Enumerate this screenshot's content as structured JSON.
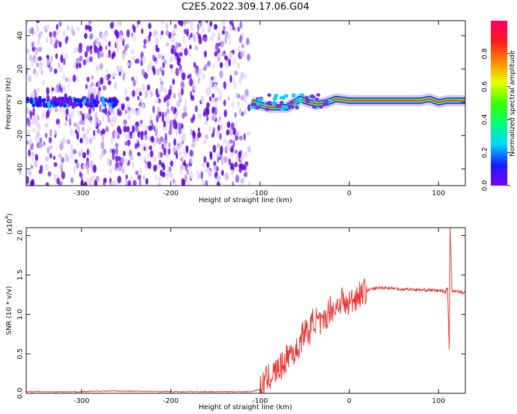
{
  "title": "C2E5.2022.309.17.06.G04",
  "colors": {
    "series": "#e8332f",
    "axis": "#000000",
    "spectrogram_purple": "#7a1fe6",
    "spectrogram_light": "#d9c4f5",
    "colorbar": [
      "#7d00ff",
      "#1a1aff",
      "#00d6ff",
      "#00ff7a",
      "#3cff00",
      "#e6ff00",
      "#ff8a00",
      "#ff1a1a",
      "#ff0066"
    ]
  },
  "chart_data": [
    {
      "type": "heatmap",
      "xlabel": "Height of straight line (km)",
      "ylabel": "Frequency (Hz)",
      "xlim": [
        -362,
        130
      ],
      "ylim": [
        -50,
        49
      ],
      "x_ticks": [
        -300,
        -200,
        -100,
        0,
        100
      ],
      "y_ticks": [
        -40,
        -20,
        0,
        20,
        40
      ],
      "x_tick_labels": [
        "-300",
        "-200",
        "-100",
        "0",
        "100"
      ],
      "y_tick_labels": [
        "-40",
        "-20",
        "0",
        "20",
        "40"
      ],
      "noise_region_x": [
        -362,
        -112
      ],
      "signal_line": {
        "x": [
          -110,
          -90,
          -70,
          -55,
          -45,
          -35,
          -25,
          -15,
          0,
          20,
          40,
          60,
          80,
          90,
          100,
          110,
          130
        ],
        "y": [
          0,
          -3,
          -3,
          2,
          0,
          -1,
          0,
          2,
          1,
          1,
          1,
          1,
          1,
          2,
          0,
          1,
          1
        ]
      },
      "colorbar": {
        "label": "Normalized spectral amplitude",
        "ticks": [
          0.0,
          0.2,
          0.4,
          0.6,
          0.8
        ],
        "tick_labels": [
          "0.0",
          "0.2",
          "0.4",
          "0.6",
          "0.8"
        ],
        "range": [
          0,
          1
        ]
      },
      "grid": false
    },
    {
      "type": "line",
      "xlabel": "Height of straight line (km)",
      "ylabel": "SNR (10 * v/v)",
      "y_multiplier_label": "(x10",
      "y_multiplier_exp": "4",
      "y_multiplier_close": ")",
      "xlim": [
        -362,
        130
      ],
      "ylim": [
        0,
        2.1
      ],
      "x_ticks": [
        -300,
        -200,
        -100,
        0,
        100
      ],
      "y_ticks": [
        0.0,
        0.5,
        1.0,
        1.5,
        2.0
      ],
      "x_tick_labels": [
        "-300",
        "-200",
        "-100",
        "0",
        "100"
      ],
      "y_tick_labels": [
        "0.0",
        "0.5",
        "1.0",
        "1.5",
        "2.0"
      ],
      "series": [
        {
          "x": [
            -362,
            -300,
            -270,
            -200,
            -150,
            -110,
            -100,
            -95,
            -90,
            -85,
            -80,
            -75,
            -70,
            -65,
            -60,
            -55,
            -50,
            -45,
            -40,
            -35,
            -30,
            -25,
            -20,
            -16,
            -12,
            -8,
            -4,
            0,
            5,
            10,
            15,
            20,
            25,
            30,
            35,
            40,
            50,
            60,
            70,
            80,
            90,
            100,
            105,
            108,
            110,
            112,
            113,
            115,
            120,
            125,
            130
          ],
          "y": [
            0.02,
            0.02,
            0.03,
            0.02,
            0.02,
            0.02,
            0.05,
            0.15,
            0.2,
            0.25,
            0.3,
            0.35,
            0.45,
            0.55,
            0.5,
            0.65,
            0.8,
            0.75,
            0.95,
            0.9,
            0.85,
            1.0,
            1.1,
            1.05,
            1.15,
            1.2,
            1.1,
            1.15,
            1.2,
            1.25,
            1.28,
            1.3,
            1.32,
            1.33,
            1.34,
            1.34,
            1.33,
            1.32,
            1.32,
            1.31,
            1.31,
            1.3,
            1.3,
            1.28,
            1.35,
            0.55,
            2.1,
            1.3,
            1.3,
            1.28,
            1.27
          ]
        }
      ],
      "grid": false
    }
  ]
}
